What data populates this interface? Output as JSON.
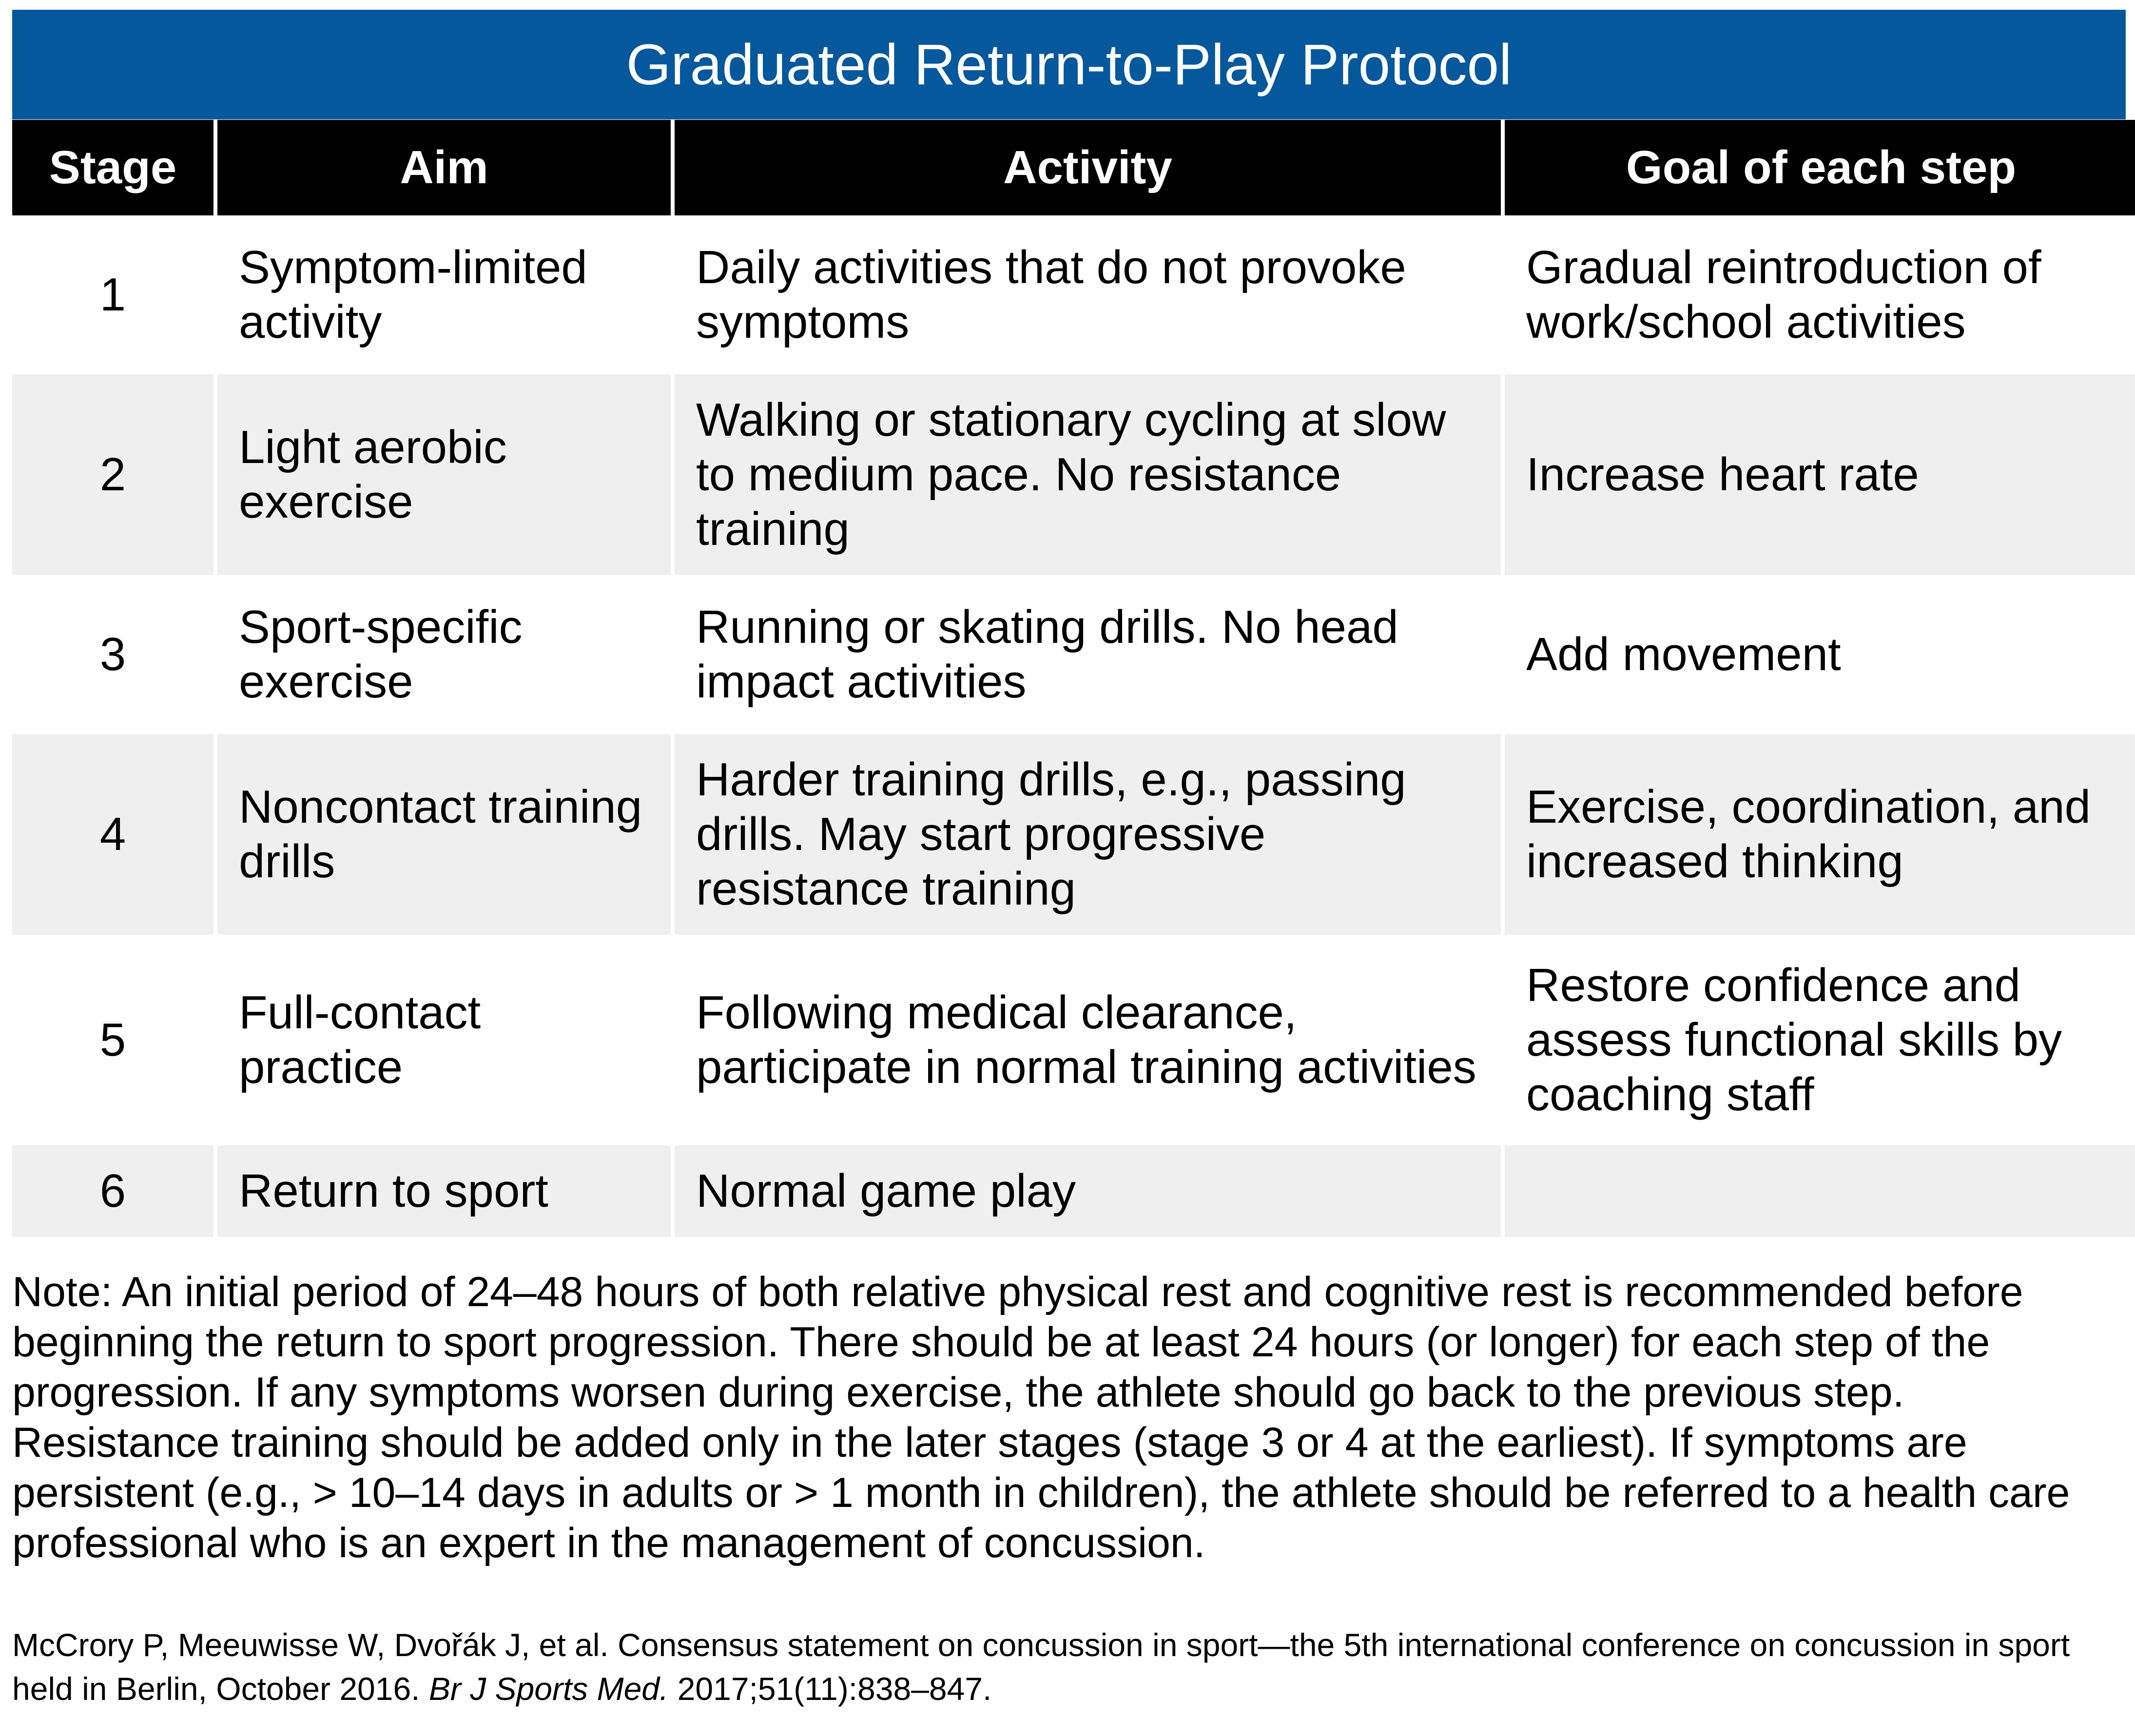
{
  "title": "Graduated Return-to-Play Protocol",
  "table": {
    "headers": [
      "Stage",
      "Aim",
      "Activity",
      "Goal of each step"
    ],
    "rows": [
      {
        "stage": "1",
        "aim": "Symptom-limited activity",
        "activity": "Daily activities that do not provoke symptoms",
        "goal": "Gradual reintroduction of work/school activities"
      },
      {
        "stage": "2",
        "aim": "Light aerobic exercise",
        "activity": "Walking or stationary cycling at slow to medium pace. No resistance training",
        "goal": "Increase heart rate"
      },
      {
        "stage": "3",
        "aim": "Sport-specific exercise",
        "activity": "Running or skating drills. No head impact activities",
        "goal": "Add movement"
      },
      {
        "stage": "4",
        "aim": "Noncontact training drills",
        "activity": "Harder training drills, e.g., passing drills. May start progressive resistance training",
        "goal": "Exercise, coordination, and increased thinking"
      },
      {
        "stage": "5",
        "aim": "Full-contact practice",
        "activity": "Following medical clearance, participate in normal training activities",
        "goal": "Restore confidence and assess functional skills by coaching staff"
      },
      {
        "stage": "6",
        "aim": "Return to sport",
        "activity": "Normal game play",
        "goal": ""
      }
    ]
  },
  "note": "Note: An initial period of 24–48 hours of both relative physical rest and cognitive rest is recommended before beginning the return to sport progression. There should be at least 24 hours (or longer) for each step of the progression. If any symptoms worsen during exercise, the athlete should go back to the previous step. Resistance training should be added only in the later stages (stage 3 or 4 at the earliest). If symptoms are persistent (e.g., > 10–14 days in adults or > 1 month in children), the athlete should be referred to a health care professional who is an expert in the management of concussion.",
  "citation": {
    "authors_title": "McCrory P, Meeuwisse W, Dvořák J, et al. Consensus statement on concussion in sport—the 5th international conference on concussion in sport held in Berlin, October 2016.",
    "journal": "Br J Sports Med.",
    "details": "2017;51(11):838–847."
  },
  "colors": {
    "title_bar": "#06589c",
    "header_bg": "#000000",
    "row_alt_bg": "#efefef"
  }
}
